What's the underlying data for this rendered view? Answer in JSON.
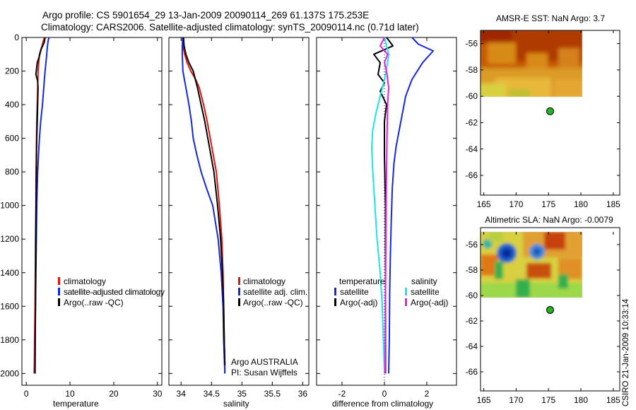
{
  "header": {
    "line1": "Argo profile: CS 5901654_29 13-Jan-2009 20090114_269 61.137S 175.253E",
    "line2": "Climatology: CARS2006. Satellite-adjusted climatology: synTS_20090114.nc (0.71d later)"
  },
  "footer": {
    "credit": "CSIRO 21-Jan-2009 10:33:14"
  },
  "colors": {
    "climatology": "#e0140c",
    "satellite": "#1428dc",
    "argo": "#000000",
    "satellite_diff_salinity": "#19e6e6",
    "argo_adj_salinity": "#e61ee6",
    "float_marker": "#22b422"
  },
  "chart_data": [
    {
      "type": "line",
      "xlabel": "temperature",
      "ylabel": "",
      "xlim": [
        -1,
        31
      ],
      "ylim": [
        2070,
        0
      ],
      "xticks": [
        0,
        10,
        20,
        30
      ],
      "yticks": [
        0,
        200,
        400,
        600,
        800,
        1000,
        1200,
        1400,
        1600,
        1800,
        2000
      ],
      "legend": [
        "climatology",
        "satellite-adjusted climatology",
        "Argo(..raw -QC)"
      ],
      "legend_placement": "lower-right",
      "series": [
        {
          "name": "climatology",
          "color": "climatology",
          "x": [
            4.2,
            3.9,
            3.6,
            3.0,
            2.7,
            2.6,
            2.5,
            2.4,
            2.35,
            2.3,
            2.25,
            2.2,
            2.1,
            2.05,
            2.0,
            1.9,
            1.85,
            1.8
          ],
          "y": [
            0,
            20,
            50,
            100,
            200,
            300,
            400,
            500,
            600,
            700,
            800,
            1000,
            1200,
            1400,
            1600,
            1800,
            1950,
            2000
          ]
        },
        {
          "name": "satellite-adjusted climatology",
          "color": "satellite",
          "x": [
            5.2,
            5.0,
            4.8,
            4.6,
            4.3,
            4.0,
            3.7,
            3.3,
            3.0,
            2.8,
            2.6,
            2.4,
            2.3,
            2.2,
            2.1,
            2.0,
            2.0
          ],
          "y": [
            0,
            20,
            60,
            120,
            200,
            300,
            400,
            500,
            600,
            700,
            800,
            1000,
            1200,
            1400,
            1600,
            1800,
            2000
          ]
        },
        {
          "name": "Argo(..raw -QC)",
          "color": "argo",
          "x": [
            4.3,
            4.1,
            3.4,
            3.0,
            2.5,
            2.2,
            2.6,
            2.7,
            2.6,
            2.5,
            2.4,
            2.3,
            2.25,
            2.2,
            2.15,
            2.1,
            2.05,
            2.0
          ],
          "y": [
            0,
            30,
            70,
            110,
            150,
            220,
            260,
            300,
            400,
            500,
            600,
            800,
            1000,
            1200,
            1400,
            1600,
            1800,
            2000
          ]
        }
      ]
    },
    {
      "type": "line",
      "xlabel": "salinity",
      "ylabel": "",
      "xlim": [
        33.8,
        36.1
      ],
      "ylim": [
        2070,
        0
      ],
      "xticks": [
        34,
        34.5,
        35,
        35.5,
        36
      ],
      "yticks": [
        0,
        200,
        400,
        600,
        800,
        1000,
        1200,
        1400,
        1600,
        1800,
        2000
      ],
      "legend": [
        "climatology",
        "satellite adj. clim.",
        "Argo(..raw -QC)"
      ],
      "legend_placement": "lower-right",
      "annotations": [
        "Argo AUSTRALIA",
        "PI: Susan Wijffels"
      ],
      "series": [
        {
          "name": "climatology",
          "color": "climatology",
          "x": [
            34.02,
            34.03,
            34.06,
            34.1,
            34.16,
            34.24,
            34.3,
            34.37,
            34.43,
            34.48,
            34.53,
            34.58,
            34.63,
            34.67,
            34.69,
            34.7,
            34.71,
            34.72,
            34.72
          ],
          "y": [
            0,
            50,
            100,
            150,
            200,
            250,
            300,
            400,
            500,
            600,
            700,
            800,
            1000,
            1200,
            1400,
            1600,
            1800,
            1950,
            2000
          ]
        },
        {
          "name": "satellite adj. clim.",
          "color": "satellite",
          "x": [
            34.03,
            34.02,
            34.02,
            34.03,
            34.08,
            34.13,
            34.17,
            34.2,
            34.26,
            34.33,
            34.42,
            34.52,
            34.61,
            34.66,
            34.69,
            34.7,
            34.72
          ],
          "y": [
            0,
            50,
            100,
            200,
            300,
            400,
            500,
            600,
            700,
            800,
            900,
            1000,
            1200,
            1400,
            1600,
            1800,
            2000
          ]
        },
        {
          "name": "Argo(..raw -QC)",
          "color": "argo",
          "x": [
            34.04,
            34.05,
            34.08,
            34.13,
            34.2,
            34.27,
            34.33,
            34.39,
            34.44,
            34.49,
            34.54,
            34.6,
            34.65,
            34.68,
            34.7,
            34.71,
            34.72
          ],
          "y": [
            0,
            50,
            100,
            150,
            200,
            300,
            400,
            500,
            600,
            700,
            800,
            1000,
            1200,
            1400,
            1600,
            1800,
            1950
          ]
        }
      ]
    },
    {
      "type": "line",
      "xlabel": "difference from climatology",
      "ylabel": "",
      "xlim": [
        -3.2,
        3.4
      ],
      "ylim": [
        2070,
        0
      ],
      "xticks": [
        -2,
        0,
        2
      ],
      "yticks": [
        0,
        200,
        400,
        600,
        800,
        1000,
        1200,
        1400,
        1600,
        1800,
        2000
      ],
      "legend": [
        "temperature",
        "satellite",
        "Argo(-adj)",
        "salinity",
        "satellite",
        "Argo(-adj)"
      ],
      "legend_placement": "lower-center",
      "series": [
        {
          "name": "temperature satellite",
          "color": "satellite",
          "x": [
            1.3,
            1.6,
            2.3,
            1.8,
            1.3,
            1.0,
            0.85,
            0.7,
            0.55,
            0.45,
            0.37,
            0.32,
            0.28,
            0.25,
            0.23,
            0.2
          ],
          "y": [
            0,
            40,
            80,
            150,
            250,
            350,
            450,
            550,
            650,
            750,
            900,
            1100,
            1300,
            1500,
            1800,
            2000
          ]
        },
        {
          "name": "temperature Argo(-adj)",
          "color": "argo",
          "x": [
            0.1,
            0.4,
            -0.5,
            -0.2,
            -0.3,
            0.0,
            -0.2,
            0.1,
            0.0,
            0.0,
            0.05,
            0.05,
            0.05
          ],
          "y": [
            0,
            50,
            100,
            150,
            220,
            270,
            320,
            400,
            500,
            700,
            1000,
            1500,
            2000
          ]
        },
        {
          "name": "salinity satellite",
          "color": "satellite_diff_salinity",
          "x": [
            0.0,
            0.1,
            0.2,
            0.15,
            0.0,
            -0.2,
            -0.4,
            -0.55,
            -0.6,
            -0.55,
            -0.45,
            -0.35,
            -0.2,
            -0.1,
            -0.05,
            0.0
          ],
          "y": [
            0,
            50,
            100,
            150,
            250,
            350,
            450,
            550,
            650,
            800,
            1000,
            1200,
            1400,
            1600,
            1800,
            2000
          ]
        },
        {
          "name": "salinity Argo(-adj)",
          "color": "argo_adj_salinity",
          "x": [
            0.0,
            -0.2,
            0.15,
            0.0,
            0.1,
            0.2,
            0.15,
            0.12,
            0.1,
            0.08,
            0.05,
            0.03
          ],
          "y": [
            0,
            50,
            100,
            150,
            200,
            300,
            400,
            600,
            800,
            1000,
            1500,
            2000
          ]
        }
      ]
    },
    {
      "type": "heatmap",
      "title": "AMSR-E SST: NaN Argo: 3.7",
      "xlim": [
        164.5,
        186
      ],
      "ylim": [
        -67.5,
        -55
      ],
      "xticks": [
        165,
        170,
        175,
        180,
        185
      ],
      "yticks": [
        -56,
        -58,
        -60,
        -62,
        -64,
        -66
      ],
      "float_position": {
        "lon": 175.253,
        "lat": -61.137
      }
    },
    {
      "type": "heatmap",
      "title": "Altimetric SLA: NaN Argo: -0.0079",
      "xlim": [
        164.5,
        186
      ],
      "ylim": [
        -67.5,
        -55
      ],
      "xticks": [
        165,
        170,
        175,
        180,
        185
      ],
      "yticks": [
        -56,
        -58,
        -60,
        -62,
        -64,
        -66
      ],
      "float_position": {
        "lon": 175.253,
        "lat": -61.137
      }
    }
  ]
}
